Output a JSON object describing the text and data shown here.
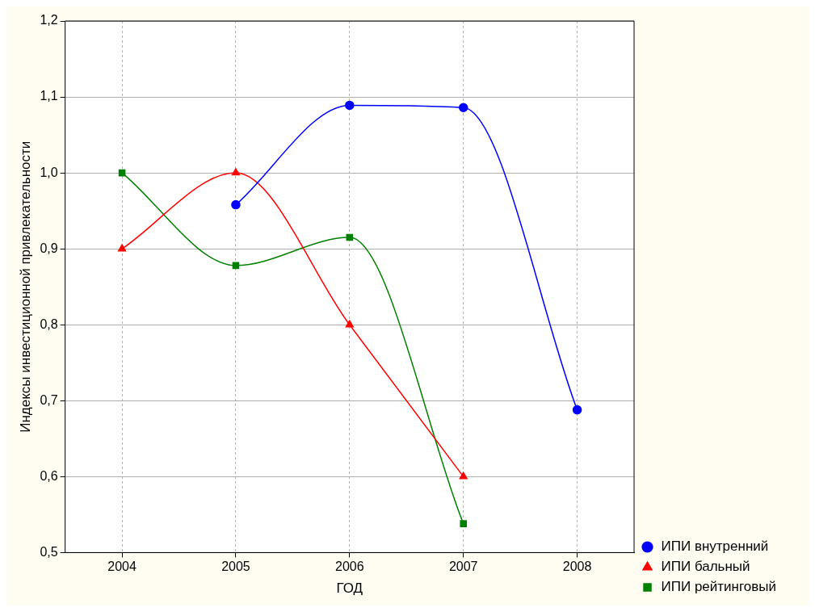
{
  "chart_data": {
    "type": "line",
    "xlabel": "ГОД",
    "ylabel": "Индексы инвестиционной привлекательности",
    "categories": [
      "2004",
      "2005",
      "2006",
      "2007",
      "2008"
    ],
    "series": [
      {
        "name": "ИПИ внутренний",
        "color": "#0000ff",
        "marker": "circle",
        "values": [
          null,
          0.958,
          1.089,
          1.086,
          0.688
        ]
      },
      {
        "name": "ИПИ бальный",
        "color": "#ff0000",
        "marker": "triangle",
        "values": [
          0.9,
          1.0,
          0.8,
          0.6,
          null
        ]
      },
      {
        "name": "ИПИ рейтинговый",
        "color": "#008000",
        "marker": "square",
        "values": [
          1.0,
          0.878,
          0.915,
          0.538,
          null
        ]
      }
    ],
    "ylim": [
      0.5,
      1.2
    ],
    "yticks": [
      {
        "value": 0.5,
        "label": "0,5"
      },
      {
        "value": 0.6,
        "label": "0,6"
      },
      {
        "value": 0.7,
        "label": "0,7"
      },
      {
        "value": 0.8,
        "label": "0,8"
      },
      {
        "value": 0.9,
        "label": "0,9"
      },
      {
        "value": 1.0,
        "label": "1,0"
      },
      {
        "value": 1.1,
        "label": "1,1"
      },
      {
        "value": 1.2,
        "label": "1,2"
      }
    ],
    "grid": true,
    "legend": "bottom right",
    "line_style": "solid"
  }
}
